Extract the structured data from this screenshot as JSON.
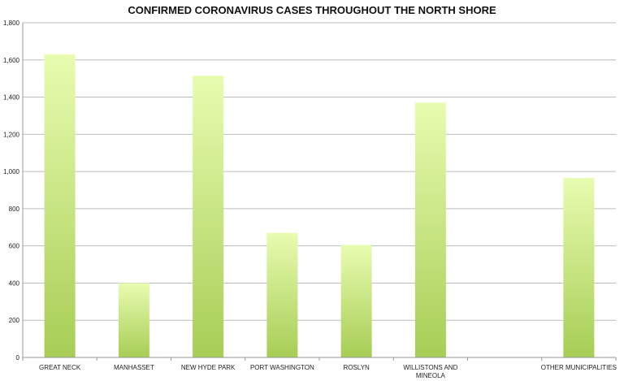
{
  "chart_data": {
    "type": "bar",
    "title": "CONFIRMED CORONAVIRUS CASES THROUGHOUT THE NORTH SHORE",
    "xlabel": "",
    "ylabel": "",
    "categories": [
      [
        "GREAT NECK"
      ],
      [
        "MANHASSET"
      ],
      [
        "NEW HYDE PARK"
      ],
      [
        "PORT WASHINGTON"
      ],
      [
        "ROSLYN"
      ],
      [
        "WILLISTONS AND",
        "MINEOLA"
      ],
      [
        ""
      ],
      [
        "OTHER MUNICIPALITIES"
      ]
    ],
    "values": [
      1630,
      400,
      1515,
      670,
      605,
      1370,
      0,
      965
    ],
    "ylim": [
      0,
      1800
    ],
    "yticks": [
      0,
      200,
      400,
      600,
      800,
      1000,
      1200,
      1400,
      1600,
      1800
    ],
    "ytick_labels": [
      "0",
      "200",
      "400",
      "600",
      "800",
      "1,000",
      "1,200",
      "1,400",
      "1,600",
      "1,800"
    ],
    "grid": true,
    "legend": "none",
    "colors": {
      "bar_top": "#e8fcb0",
      "bar_bottom": "#a7cd55",
      "grid": "#bdbdbd",
      "axis": "#9a9a9a"
    }
  }
}
